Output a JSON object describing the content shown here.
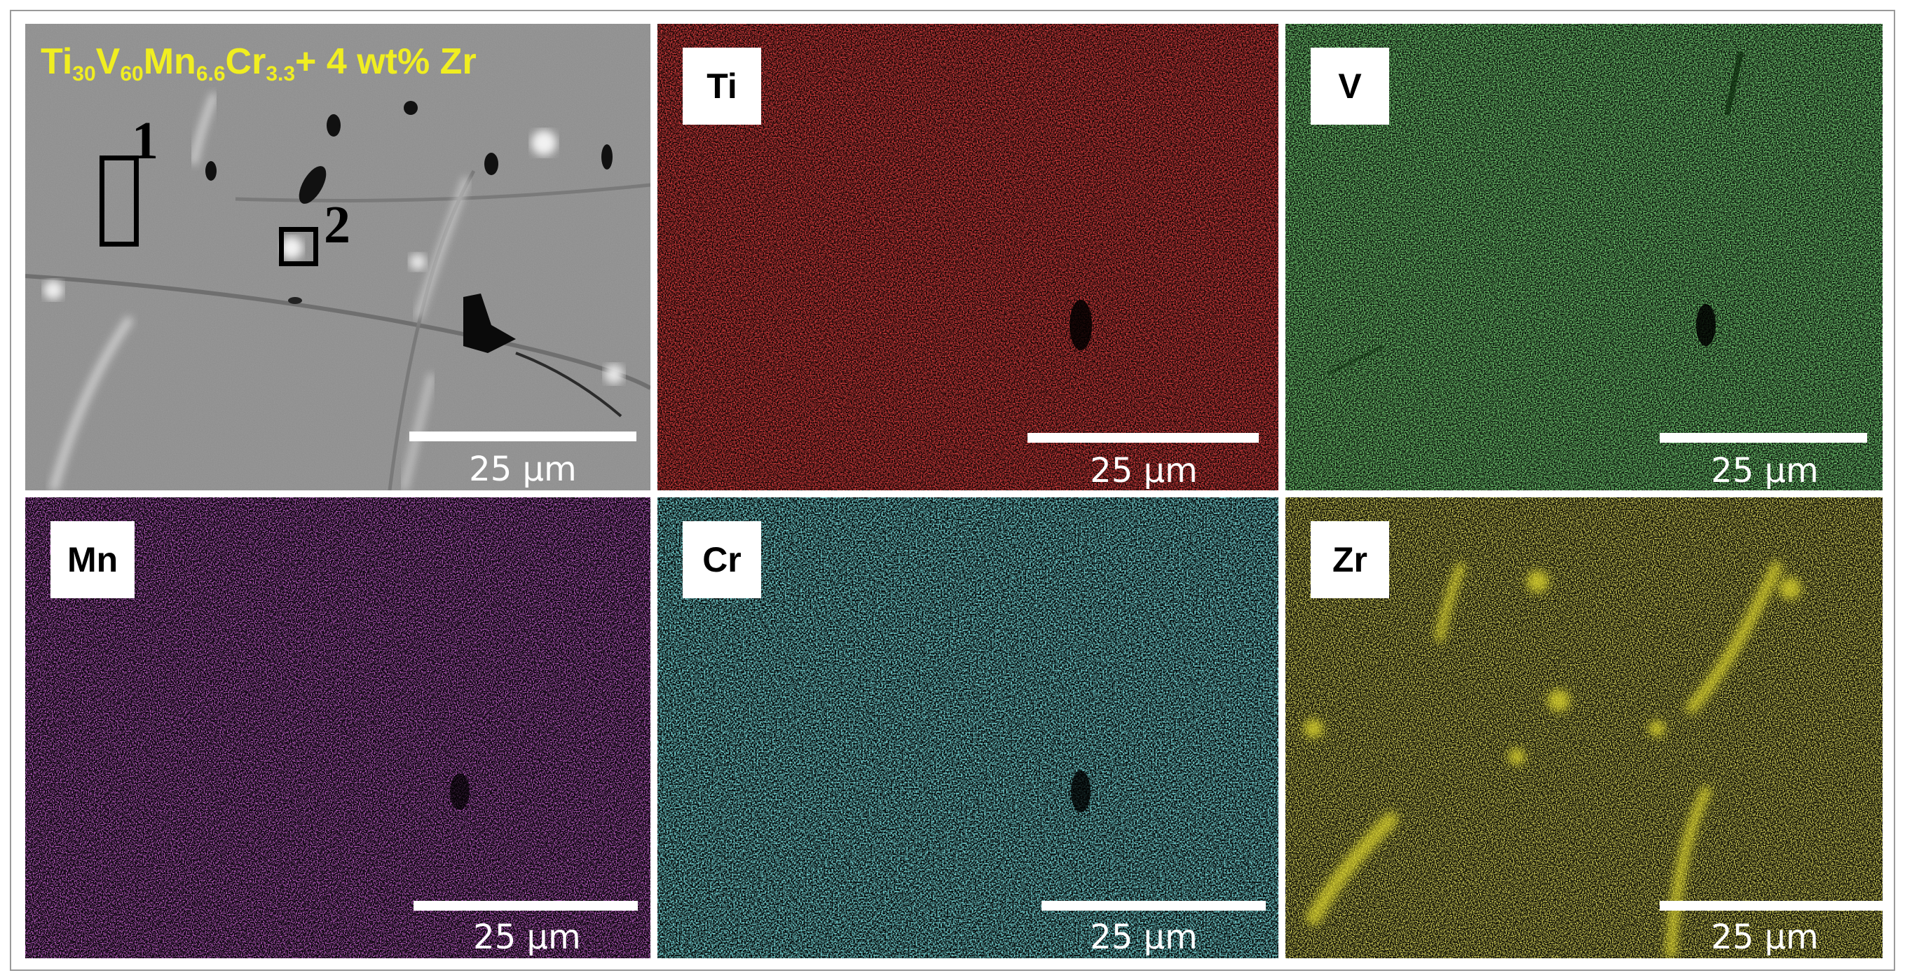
{
  "figure": {
    "panels": [
      {
        "id": "sem",
        "label": "",
        "scale_label": "25 µm",
        "color": "#8c8c8c"
      },
      {
        "id": "ti",
        "label": "Ti",
        "scale_label": "25 µm",
        "color": "#b80d0d"
      },
      {
        "id": "v",
        "label": "V",
        "scale_label": "25 µm",
        "color": "#2ea32e"
      },
      {
        "id": "mn",
        "label": "Mn",
        "scale_label": "25 µm",
        "color": "#7a1d8a"
      },
      {
        "id": "cr",
        "label": "Cr",
        "scale_label": "25 µm",
        "color": "#2aa7a8"
      },
      {
        "id": "zr",
        "label": "Zr",
        "scale_label": "25 µm",
        "color": "#c4bc1a"
      }
    ],
    "sample_formula": {
      "ti": "Ti",
      "ti_sub": "30",
      "v": "V",
      "v_sub": "60",
      "mn": "Mn",
      "mn_sub": "6.6",
      "cr": "Cr",
      "cr_sub": "3.3",
      "suffix": "+ 4 wt% Zr",
      "color": "#f0ee21"
    },
    "regions": [
      {
        "label": "1"
      },
      {
        "label": "2"
      }
    ]
  }
}
